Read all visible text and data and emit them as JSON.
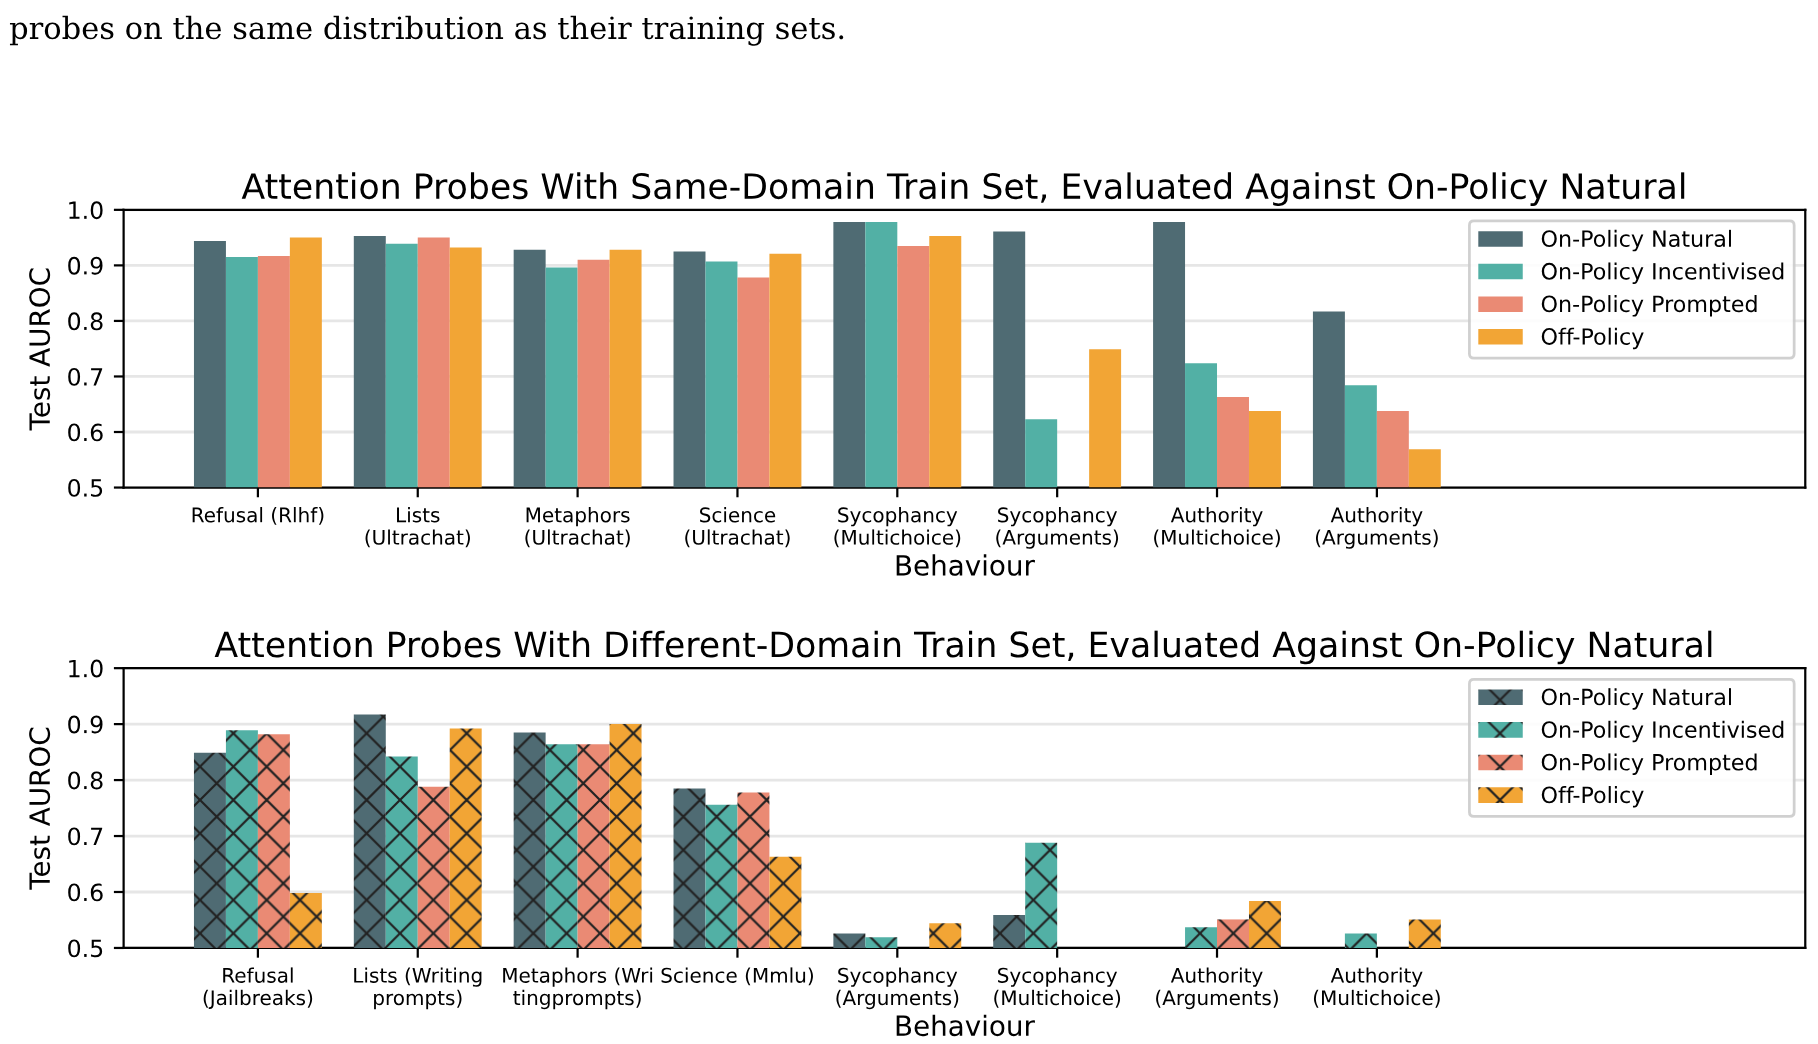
{
  "chart_data": [
    {
      "type": "bar",
      "title": "Attention Probes With Same-Domain Train Set, Evaluated Against On-Policy Natural",
      "xlabel": "Behaviour",
      "ylabel": "Test AUROC",
      "annotations": [
        "probes on the same distribution as their training sets."
      ],
      "categories": [
        "Refusal (Rlhf)",
        "Lists\n(Ultrachat)",
        "Metaphors\n(Ultrachat)",
        "Science\n(Ultrachat)",
        "Sycophancy\n(Multichoice)",
        "Sycophancy\n(Arguments)",
        "Authority\n(Multichoice)",
        "Authority\n(Arguments)"
      ],
      "series": [
        {
          "name": "On-Policy Natural",
          "color": "#4f6b73",
          "values": [
            0.944,
            0.953,
            0.928,
            0.925,
            0.978,
            0.961,
            0.978,
            0.817
          ]
        },
        {
          "name": "On-Policy Incentivised",
          "color": "#52b0a5",
          "values": [
            0.915,
            0.939,
            0.896,
            0.907,
            0.978,
            0.623,
            0.724,
            0.684
          ]
        },
        {
          "name": "On-Policy Prompted",
          "color": "#ea8a74",
          "values": [
            0.917,
            0.95,
            0.91,
            0.878,
            0.935,
            null,
            0.663,
            0.638
          ]
        },
        {
          "name": "Off-Policy",
          "color": "#f2a535",
          "values": [
            0.95,
            0.932,
            0.928,
            0.921,
            0.953,
            0.749,
            0.638,
            0.569
          ]
        }
      ],
      "ylim": [
        0.5,
        1.0
      ],
      "yticks": [
        0.5,
        0.6,
        0.7,
        0.8,
        0.9,
        {
          "value": 1,
          "label": "1.0"
        }
      ],
      "grid": "y",
      "legend": "top right"
    },
    {
      "type": "bar",
      "title": "Attention Probes With Different-Domain Train Set, Evaluated Against On-Policy Natural",
      "xlabel": "Behaviour",
      "ylabel": "Test AUROC",
      "categories": [
        "Refusal\n(Jailbreaks)",
        "Lists (Writing\nprompts)",
        "Metaphors (Wri\ntingprompts)",
        "Science (Mmlu)",
        "Sycophancy\n(Arguments)",
        "Sycophancy\n(Multichoice)",
        "Authority\n(Arguments)",
        "Authority\n(Multichoice)"
      ],
      "series": [
        {
          "name": "On-Policy Natural",
          "color": "#4f6b73",
          "values": [
            0.849,
            0.917,
            0.885,
            0.785,
            0.526,
            0.559,
            null,
            null
          ]
        },
        {
          "name": "On-Policy Incentivised",
          "color": "#52b0a5",
          "values": [
            0.889,
            0.842,
            0.864,
            0.756,
            0.519,
            0.688,
            0.537,
            0.526
          ]
        },
        {
          "name": "On-Policy Prompted",
          "color": "#ea8a74",
          "values": [
            0.882,
            0.788,
            0.864,
            0.778,
            null,
            null,
            0.551,
            null
          ]
        },
        {
          "name": "Off-Policy",
          "color": "#f2a535",
          "values": [
            0.598,
            0.892,
            0.9,
            0.663,
            0.544,
            null,
            0.584,
            0.551
          ]
        }
      ],
      "ylim": [
        0.5,
        1.0
      ],
      "yticks": [
        0.5,
        0.6,
        0.7,
        0.8,
        0.9,
        {
          "value": 1,
          "label": "1.0"
        }
      ],
      "grid": "y",
      "legend": "top right"
    }
  ]
}
